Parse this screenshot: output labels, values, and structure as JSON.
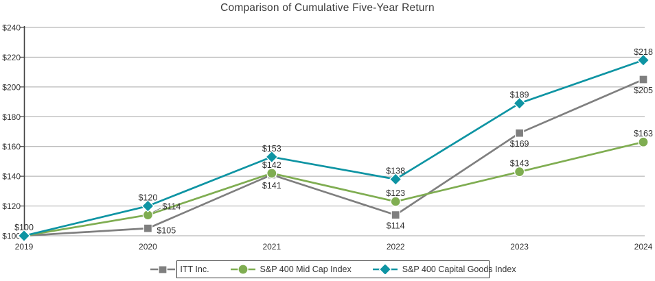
{
  "title": "Comparison of Cumulative Five-Year Return",
  "colors": {
    "itt_gray": "#7F7F7F",
    "midcap_green": "#7FAD51",
    "capital_goods_teal": "#0E94A3",
    "gridline": "#A6A6A6",
    "axis": "#404040",
    "text": "#333333"
  },
  "chart_data": {
    "type": "line",
    "title": "Comparison of Cumulative Five-Year Return",
    "x_categories": [
      "2019",
      "2020",
      "2021",
      "2022",
      "2023",
      "2024"
    ],
    "y_ticks": [
      "$100",
      "$120",
      "$140",
      "$160",
      "$180",
      "$200",
      "$220",
      "$240"
    ],
    "ylim": [
      100,
      240
    ],
    "y_tick_step": 20,
    "grid": "horizontal",
    "legend_position": "bottom",
    "series": [
      {
        "name": "ITT Inc.",
        "marker": "square",
        "color": "#7F7F7F",
        "values": [
          100,
          105,
          141,
          114,
          169,
          205
        ],
        "point_labels": [
          "",
          "$105",
          "$141",
          "$114",
          "$169",
          "$205"
        ],
        "label_placements": [
          "none",
          "right",
          "below",
          "below",
          "below",
          "below"
        ]
      },
      {
        "name": "S&P 400 Mid Cap Index",
        "marker": "circle",
        "color": "#7FAD51",
        "values": [
          100,
          114,
          142,
          123,
          143,
          163
        ],
        "point_labels": [
          "",
          "$114",
          "$142",
          "$123",
          "$143",
          "$163"
        ],
        "label_placements": [
          "none",
          "leader-right",
          "above",
          "above",
          "above",
          "above"
        ]
      },
      {
        "name": "S&P 400 Capital Goods Index",
        "marker": "diamond",
        "color": "#0E94A3",
        "values": [
          100,
          120,
          153,
          138,
          189,
          218
        ],
        "point_labels": [
          "$100",
          "$120",
          "$153",
          "$138",
          "$189",
          "$218"
        ],
        "label_placements": [
          "above",
          "above",
          "above",
          "above",
          "above",
          "above"
        ]
      }
    ]
  }
}
